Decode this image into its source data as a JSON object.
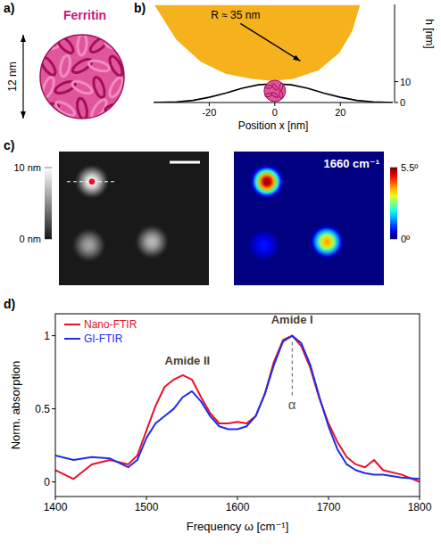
{
  "chart_data": [
    {
      "type": "image",
      "panel": "a)",
      "title": "Ferritin",
      "color": "#c8177a",
      "annotations": [
        {
          "text": "12 nm"
        }
      ]
    },
    {
      "type": "line",
      "panel": "b)",
      "xlabel": "Position x [nm]",
      "ylabel": "h [nm]",
      "xlim": [
        -37,
        36
      ],
      "ylim": [
        0,
        47
      ],
      "xticks": [
        -20,
        0,
        20
      ],
      "yticks": [
        0,
        10
      ],
      "annotations": [
        {
          "text": "R ≈ 35 nm",
          "x": -12,
          "y": 40
        }
      ],
      "series": [
        {
          "type": "area",
          "color": "#f5b21c",
          "x": [
            -36.7,
            -30,
            -22.6,
            -15,
            -7,
            -0.8,
            5.6,
            13.3,
            19.7,
            23.6,
            26
          ],
          "values": [
            46.7,
            30,
            19.6,
            13.8,
            11.3,
            10.4,
            11.3,
            15.4,
            23.8,
            34.2,
            46.7
          ]
        },
        {
          "type": "line",
          "color": "#000000",
          "x": [
            -37,
            -30,
            -25,
            -20,
            -15,
            -10,
            -5,
            0,
            5,
            10,
            15,
            20,
            25,
            30,
            36
          ],
          "values": [
            0,
            0.3,
            1,
            2.5,
            4.5,
            6.8,
            8.5,
            9,
            8.5,
            6.8,
            4.5,
            2.5,
            1,
            0.3,
            0
          ]
        }
      ]
    },
    {
      "type": "heatmap",
      "panel": "c)",
      "xlim": [
        0,
        50
      ],
      "ylim": [
        0,
        40
      ],
      "colorbar_range": [
        0,
        10
      ],
      "colorbar_ticks": [
        {
          "value": 0,
          "label": "0 nm"
        },
        {
          "value": 10,
          "label": "10 nm"
        }
      ],
      "particles": [
        {
          "x": 11,
          "y": 9,
          "value": 10
        },
        {
          "x": 10,
          "y": 28,
          "value": 6
        },
        {
          "x": 31,
          "y": 27,
          "value": 7
        }
      ]
    },
    {
      "type": "heatmap",
      "title": "1660 cm⁻¹",
      "xlim": [
        0,
        50
      ],
      "ylim": [
        0,
        40
      ],
      "colorbar_range": [
        0,
        5.5
      ],
      "colorbar_ticks": [
        {
          "value": 0,
          "label": "0º"
        },
        {
          "value": 5.5,
          "label": "5.5º"
        }
      ],
      "particles": [
        {
          "x": 11,
          "y": 9,
          "value": 5.5
        },
        {
          "x": 10,
          "y": 28,
          "value": 0.8
        },
        {
          "x": 31,
          "y": 27,
          "value": 4
        }
      ]
    },
    {
      "type": "line",
      "panel": "d)",
      "xlabel": "Frequency ω [cm⁻¹]",
      "ylabel": "Norm. absorption",
      "xlim": [
        1400,
        1800
      ],
      "ylim": [
        -0.1,
        1.15
      ],
      "xticks": [
        1400,
        1500,
        1600,
        1700,
        1800
      ],
      "yticks": [
        0,
        0.5,
        1
      ],
      "legend": "top-left",
      "annotations": [
        {
          "text": "Amide II",
          "x": 1545,
          "y": 0.8
        },
        {
          "text": "Amide I",
          "x": 1660,
          "y": 1.08
        },
        {
          "text": "α",
          "x": 1660,
          "y": 0.5
        }
      ],
      "x": [
        1400,
        1420,
        1440,
        1460,
        1480,
        1490,
        1500,
        1510,
        1520,
        1530,
        1540,
        1550,
        1560,
        1570,
        1580,
        1590,
        1600,
        1610,
        1620,
        1630,
        1640,
        1650,
        1660,
        1670,
        1680,
        1690,
        1700,
        1710,
        1720,
        1730,
        1740,
        1750,
        1760,
        1780,
        1800
      ],
      "series": [
        {
          "name": "Nano-FTIR",
          "color": "#e8102a",
          "values": [
            0.08,
            0.02,
            0.12,
            0.15,
            0.12,
            0.18,
            0.35,
            0.52,
            0.65,
            0.7,
            0.73,
            0.7,
            0.58,
            0.47,
            0.4,
            0.4,
            0.41,
            0.4,
            0.45,
            0.6,
            0.82,
            0.97,
            1.0,
            0.93,
            0.78,
            0.57,
            0.4,
            0.27,
            0.17,
            0.12,
            0.1,
            0.15,
            0.08,
            0.05,
            0.0
          ]
        },
        {
          "name": "GI-FTIR",
          "color": "#1f2ee6",
          "values": [
            0.18,
            0.15,
            0.17,
            0.16,
            0.1,
            0.15,
            0.3,
            0.4,
            0.45,
            0.5,
            0.58,
            0.62,
            0.55,
            0.45,
            0.38,
            0.36,
            0.36,
            0.38,
            0.45,
            0.6,
            0.8,
            0.96,
            1.0,
            0.95,
            0.8,
            0.58,
            0.38,
            0.22,
            0.12,
            0.08,
            0.06,
            0.05,
            0.05,
            0.03,
            0.02
          ]
        }
      ]
    }
  ]
}
